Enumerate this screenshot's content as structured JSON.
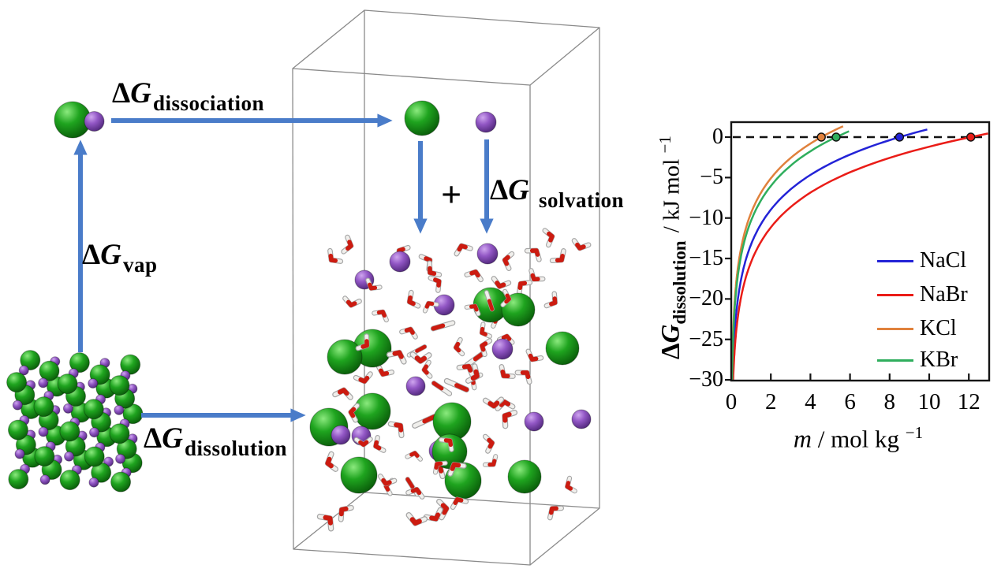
{
  "figure": {
    "background": "#ffffff",
    "labels": {
      "dissociation": {
        "delta": "Δ",
        "g": "G",
        "sub": "dissociation"
      },
      "vap": {
        "delta": "Δ",
        "g": "G",
        "sub": "vap"
      },
      "dissolution": {
        "delta": "Δ",
        "g": "G",
        "sub": "dissolution"
      },
      "solvation": {
        "delta": "Δ",
        "g": "G",
        "sub": "solvation"
      },
      "plus": "+"
    },
    "colors": {
      "arrow_blue": "#4a7cc9",
      "box_edge": "#8a8a8a",
      "green_ion_light": "#8bea7e",
      "green_ion_mid": "#1fa41f",
      "green_ion_dark": "#0a5e0a",
      "purple_ion_light": "#cfa6ef",
      "purple_ion_mid": "#9257c5",
      "purple_ion_dark": "#53297e",
      "water_oxygen_red": "#cc1b10",
      "water_hydrogen_white": "#f0efec",
      "water_outline_gray": "#a5a5a5"
    },
    "scene_description": {
      "crystal": "ionic salt crystal lattice of large green ions and small purple ions",
      "ion_pair": "contact ion pair (one green + one purple ion) in gas phase",
      "gas_ions": "separated green and purple ions above the solution",
      "box": "3D simulation box filled with water molecules and dissolved green/purple ions",
      "water_count": 80,
      "dissolved_green_ion_count": 12,
      "dissolved_purple_ion_count": 11
    }
  },
  "chart_data": {
    "type": "line",
    "title": "",
    "xlabel_m": "m",
    "xlabel_rest": " / mol kg ",
    "xlabel_sup": "−1",
    "ylabel_delta": "Δ",
    "ylabel_g": "G",
    "ylabel_sub": "dissolution",
    "ylabel_rest": " / kJ mol ",
    "ylabel_sup": "−1",
    "xlim": [
      0,
      13.0
    ],
    "ylim": [
      -30.4,
      1.9
    ],
    "xticks": [
      0,
      2,
      4,
      6,
      8,
      10,
      12
    ],
    "yticks": [
      0,
      -5,
      -10,
      -15,
      -20,
      -25,
      -30
    ],
    "zero_line": {
      "style": "dashed",
      "value": 0,
      "color": "#111111"
    },
    "model": "dG = a * ln(m / m_sat); curve drawn from ylim bottom up to m_end",
    "series": [
      {
        "name": "NaCl",
        "color": "#2323d7",
        "m_sat": 8.5,
        "m_end": 9.9,
        "a": 6.2,
        "points_m_dG": [
          [
            0.067,
            -30
          ],
          [
            0.34,
            -20
          ],
          [
            1.69,
            -10
          ],
          [
            3.8,
            -5
          ],
          [
            8.5,
            0
          ],
          [
            9.9,
            0.94
          ]
        ]
      },
      {
        "name": "NaBr",
        "color": "#ea1c17",
        "m_sat": 12.1,
        "m_end": 13.0,
        "a": 6.2,
        "points_m_dG": [
          [
            0.095,
            -30
          ],
          [
            0.48,
            -20
          ],
          [
            2.41,
            -10
          ],
          [
            5.41,
            -5
          ],
          [
            12.1,
            0
          ],
          [
            13.0,
            0.45
          ]
        ]
      },
      {
        "name": "KCl",
        "color": "#e0813c",
        "m_sat": 4.55,
        "m_end": 5.65,
        "a": 6.2,
        "points_m_dG": [
          [
            0.036,
            -30
          ],
          [
            0.18,
            -20
          ],
          [
            0.9,
            -10
          ],
          [
            2.03,
            -5
          ],
          [
            4.55,
            0
          ],
          [
            5.65,
            1.34
          ]
        ]
      },
      {
        "name": "KBr",
        "color": "#2fae5d",
        "m_sat": 5.3,
        "m_end": 5.95,
        "a": 6.2,
        "points_m_dG": [
          [
            0.042,
            -30
          ],
          [
            0.21,
            -20
          ],
          [
            1.05,
            -10
          ],
          [
            2.37,
            -5
          ],
          [
            5.3,
            0
          ],
          [
            5.95,
            0.72
          ]
        ]
      }
    ],
    "saturation_markers": [
      {
        "series": "NaCl",
        "m": 8.5,
        "dG": 0
      },
      {
        "series": "NaBr",
        "m": 12.1,
        "dG": 0
      },
      {
        "series": "KCl",
        "m": 4.55,
        "dG": 0
      },
      {
        "series": "KBr",
        "m": 5.3,
        "dG": 0
      }
    ],
    "legend": {
      "position": "inside lower right",
      "entries": [
        "NaCl",
        "NaBr",
        "KCl",
        "KBr"
      ]
    },
    "grid": false
  }
}
